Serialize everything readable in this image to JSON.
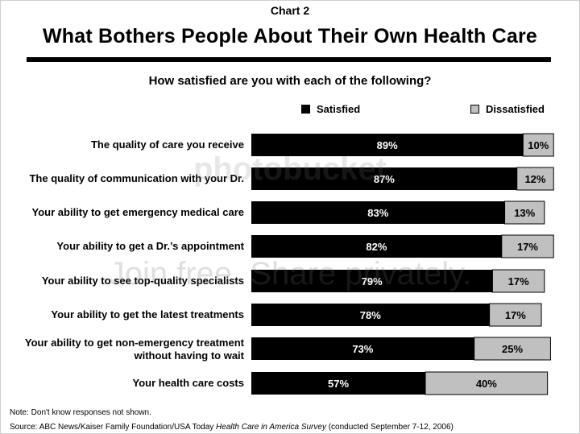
{
  "header": {
    "chart_label": "Chart 2",
    "title": "What Bothers People About Their Own Health Care",
    "subtitle": "How satisfied are you with each of the following?"
  },
  "colors": {
    "satisfied": "#000000",
    "dissatisfied": "#c0c0c0"
  },
  "chart_data": {
    "type": "bar",
    "orientation": "horizontal-stacked",
    "title": "What Bothers People About Their Own Health Care",
    "subtitle": "How satisfied are you with each of the following?",
    "categories": [
      [
        "The quality of care you receive"
      ],
      [
        "The quality of communication with your Dr."
      ],
      [
        "Your ability to get emergency medical care"
      ],
      [
        "Your ability to get a Dr.’s appointment"
      ],
      [
        "Your ability to see top-quality specialists"
      ],
      [
        "Your ability to get the latest treatments"
      ],
      [
        "Your ability to get non-emergency treatment",
        "without having to wait"
      ],
      [
        "Your health care costs"
      ]
    ],
    "series": [
      {
        "name": "Satisfied",
        "values": [
          89,
          87,
          83,
          82,
          79,
          78,
          73,
          57
        ],
        "labels": [
          "89%",
          "87%",
          "83%",
          "82%",
          "79%",
          "78%",
          "73%",
          "57%"
        ]
      },
      {
        "name": "Dissatisfied",
        "values": [
          10,
          12,
          13,
          17,
          17,
          17,
          25,
          40
        ],
        "labels": [
          "10%",
          "12%",
          "13%",
          "17%",
          "17%",
          "17%",
          "25%",
          "40%"
        ]
      }
    ],
    "xlim": [
      0,
      100
    ],
    "legend": "top-right"
  },
  "footer": {
    "note": "Note: Don't know responses not shown.",
    "source_prefix": "Source: ABC News/Kaiser Family Foundation/USA Today ",
    "source_survey": "Health Care in America Survey",
    "source_suffix": " (conducted September 7-12, 2006)"
  },
  "watermark": {
    "logo": "photobucket",
    "tagline": "Join free. Share privately."
  }
}
